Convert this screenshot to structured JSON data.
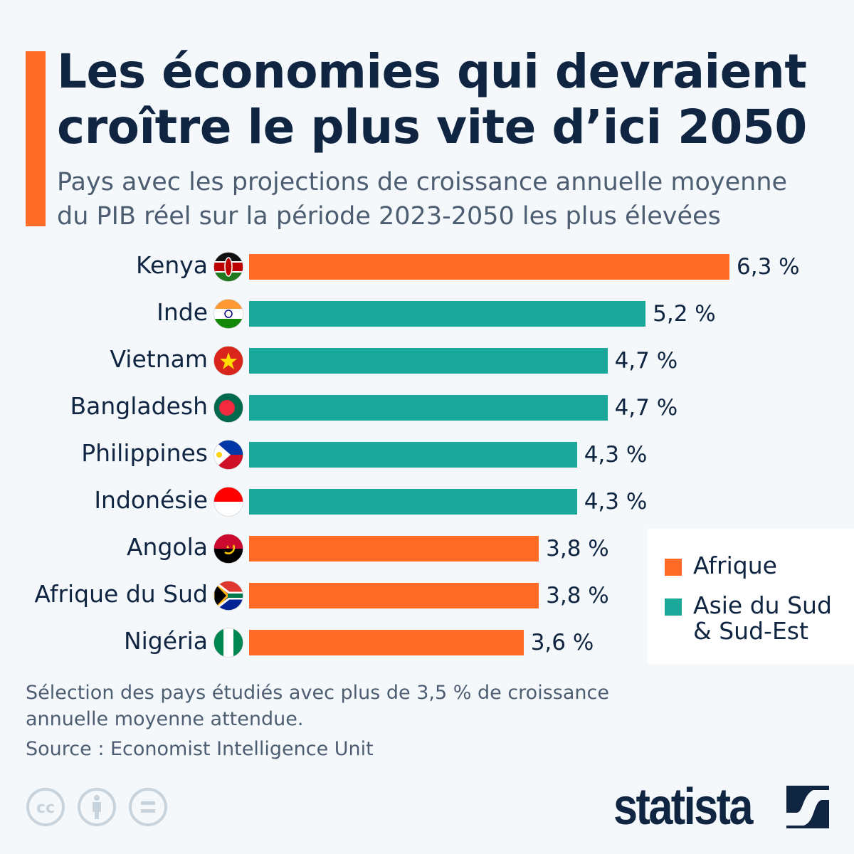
{
  "header": {
    "title_line1": "Les économies qui devraient",
    "title_line2": "croître le plus vite d’ici 2050",
    "subtitle_line1": "Pays avec les projections de croissance annuelle moyenne",
    "subtitle_line2": "du PIB réel sur la période 2023-2050 les plus élevées"
  },
  "colors": {
    "afrique": "#ff6b26",
    "asie": "#1aa89a",
    "text": "#0f2541",
    "background": "#f4f8fb"
  },
  "chart_data": {
    "type": "bar",
    "orientation": "horizontal",
    "categories": [
      "Kenya",
      "Inde",
      "Vietnam",
      "Bangladesh",
      "Philippines",
      "Indonésie",
      "Angola",
      "Afrique du Sud",
      "Nigéria"
    ],
    "values": [
      6.3,
      5.2,
      4.7,
      4.7,
      4.3,
      4.3,
      3.8,
      3.8,
      3.6
    ],
    "value_labels": [
      "6,3 %",
      "5,2 %",
      "4,7 %",
      "4,7 %",
      "4,3 %",
      "4,3 %",
      "3,8 %",
      "3,8 %",
      "3,6 %"
    ],
    "groups": [
      "Afrique",
      "Asie du Sud & Sud-Est",
      "Asie du Sud & Sud-Est",
      "Asie du Sud & Sud-Est",
      "Asie du Sud & Sud-Est",
      "Asie du Sud & Sud-Est",
      "Afrique",
      "Afrique",
      "Afrique"
    ],
    "flags": [
      "kenya-flag-icon",
      "india-flag-icon",
      "vietnam-flag-icon",
      "bangladesh-flag-icon",
      "philippines-flag-icon",
      "indonesia-flag-icon",
      "angola-flag-icon",
      "south-africa-flag-icon",
      "nigeria-flag-icon"
    ],
    "unit": "%",
    "xlim": [
      0,
      6.3
    ],
    "grid": false,
    "legend_placement": "bottom-right",
    "legend": [
      {
        "name": "Afrique",
        "color": "#ff6b26"
      },
      {
        "name_line1": "Asie du Sud",
        "name_line2": "& Sud-Est",
        "color": "#1aa89a"
      }
    ]
  },
  "footer": {
    "note_line1": "Sélection des pays étudiés avec plus de 3,5 % de croissance",
    "note_line2": "annuelle moyenne attendue.",
    "source": "Source : Economist Intelligence Unit",
    "license_icons": [
      "creative-commons-icon",
      "attribution-icon",
      "no-derivatives-icon"
    ],
    "logo": "statista"
  }
}
